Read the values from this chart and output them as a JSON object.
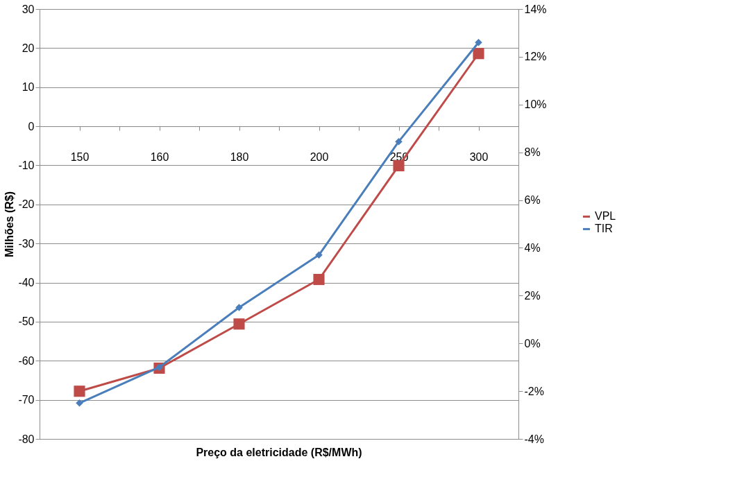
{
  "chart_data": {
    "type": "line",
    "xlabel": "Preço da eletricidade (R$/MWh)",
    "ylabel": "Milhões (R$)",
    "categories": [
      "150",
      "160",
      "180",
      "200",
      "250",
      "300"
    ],
    "series": [
      {
        "name": "VPL",
        "color": "#be4b48",
        "marker": "square",
        "values": [
          -67.8,
          -61.9,
          -50.6,
          -39.2,
          -10.1,
          18.6
        ]
      },
      {
        "name": "TIR",
        "color": "#4a7ebb",
        "marker": "diamond",
        "axis": "y2",
        "values": [
          -2.5,
          -1.0,
          1.5,
          3.7,
          8.45,
          12.6
        ]
      }
    ],
    "ylim": [
      -80,
      30
    ],
    "yticks": [
      -80,
      -70,
      -60,
      -50,
      -40,
      -30,
      -20,
      -10,
      0,
      10,
      20,
      30
    ],
    "y2lim": [
      -4,
      14
    ],
    "y2ticks": [
      {
        "value": -4,
        "label": "-4%"
      },
      {
        "value": -2,
        "label": "-2%"
      },
      {
        "value": 0,
        "label": "0%"
      },
      {
        "value": 2,
        "label": "2%"
      },
      {
        "value": 4,
        "label": "4%"
      },
      {
        "value": 6,
        "label": "6%"
      },
      {
        "value": 8,
        "label": "8%"
      },
      {
        "value": 10,
        "label": "10%"
      },
      {
        "value": 12,
        "label": "12%"
      },
      {
        "value": 14,
        "label": "14%"
      }
    ],
    "grid": "y",
    "legend": "right",
    "line_style": "solid"
  }
}
